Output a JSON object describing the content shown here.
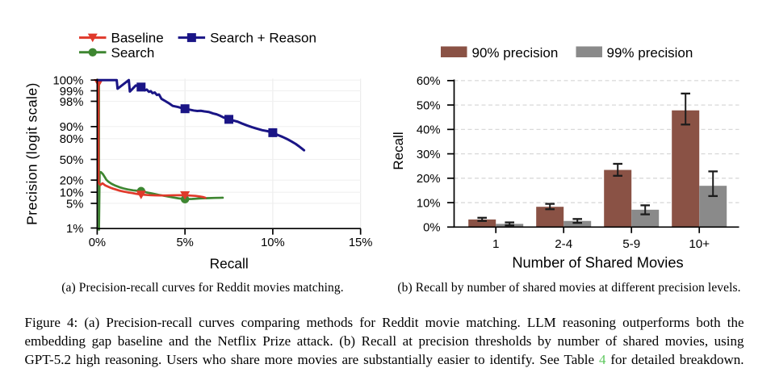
{
  "captions": {
    "sub_a": "(a) Precision-recall curves for Reddit movies matching.",
    "sub_b": "(b) Recall by number of shared movies at different precision levels.",
    "figure_line1": "Figure 4: (a) Precision-recall curves comparing methods for Reddit movie matching. LLM reasoning outperforms both the",
    "figure_line2": "embedding gap baseline and the Netflix Prize attack. (b) Recall at precision thresholds by number of shared movies, using",
    "figure_line3_pre": "GPT-5.2 high reasoning. Users who share more movies are substantially easier to identify. See Table ",
    "figure_line3_link": "4",
    "figure_line3_post": " for detailed breakdown.",
    "link_color": "#5fc85f"
  },
  "chart_data": [
    {
      "id": "pr_curves",
      "type": "line",
      "xlabel": "Recall",
      "ylabel": "Precision (logit scale)",
      "x_scale": "linear",
      "y_scale": "logit",
      "xlim": [
        0,
        15
      ],
      "x_ticks": [
        {
          "value": 0,
          "label": "0%"
        },
        {
          "value": 5,
          "label": "5%"
        },
        {
          "value": 10,
          "label": "10%"
        },
        {
          "value": 15,
          "label": "15%"
        }
      ],
      "y_ticks": [
        {
          "value": 1,
          "label": "1%"
        },
        {
          "value": 5,
          "label": "5%"
        },
        {
          "value": 10,
          "label": "10%"
        },
        {
          "value": 20,
          "label": "20%"
        },
        {
          "value": 50,
          "label": "50%"
        },
        {
          "value": 80,
          "label": "80%"
        },
        {
          "value": 90,
          "label": "90%"
        },
        {
          "value": 98,
          "label": "98%"
        },
        {
          "value": 99,
          "label": "99%"
        },
        {
          "value": 100,
          "label": "100%"
        }
      ],
      "series": [
        {
          "name": "Search",
          "color": "#3e8631",
          "marker": "circle",
          "points": [
            [
              0.1,
              100
            ],
            [
              0.1,
              0.9
            ],
            [
              0.14,
              30
            ],
            [
              0.21,
              30
            ],
            [
              0.32,
              27.3
            ],
            [
              0.44,
              23.1
            ],
            [
              0.52,
              20.4
            ],
            [
              0.64,
              18.3
            ],
            [
              0.81,
              16.4
            ],
            [
              1.04,
              14.7
            ],
            [
              1.28,
              13.4
            ],
            [
              1.51,
              12.5
            ],
            [
              1.74,
              11.8
            ],
            [
              2.05,
              11.2
            ],
            [
              2.5,
              10.7
            ],
            [
              2.8,
              9.9
            ],
            [
              3.1,
              9.3
            ],
            [
              3.5,
              8.5
            ],
            [
              3.9,
              7.9
            ],
            [
              4.3,
              7.3
            ],
            [
              4.6,
              6.9
            ],
            [
              5.0,
              6.5
            ],
            [
              5.4,
              6.6
            ],
            [
              5.9,
              6.85
            ],
            [
              6.3,
              6.95
            ],
            [
              6.7,
              7.05
            ],
            [
              7.0,
              7.1
            ],
            [
              7.15,
              7.15
            ]
          ],
          "marker_points": [
            [
              2.5,
              10.7
            ],
            [
              5.0,
              6.5
            ]
          ]
        },
        {
          "name": "Baseline",
          "color": "#e0392b",
          "marker": "triangle-down",
          "points": [
            [
              0.074,
              100
            ],
            [
              0.074,
              17.3
            ],
            [
              0.18,
              15.3
            ],
            [
              0.3,
              16.8
            ],
            [
              0.45,
              15.0
            ],
            [
              0.63,
              13.8
            ],
            [
              0.75,
              13.1
            ],
            [
              0.9,
              12.4
            ],
            [
              1.05,
              11.8
            ],
            [
              1.27,
              11.0
            ],
            [
              1.5,
              10.4
            ],
            [
              1.75,
              9.9
            ],
            [
              2.0,
              9.5
            ],
            [
              2.2,
              9.1
            ],
            [
              2.5,
              8.7
            ],
            [
              2.75,
              8.5
            ],
            [
              3.0,
              8.35
            ],
            [
              3.3,
              8.25
            ],
            [
              3.6,
              8.2
            ],
            [
              3.9,
              8.2
            ],
            [
              4.3,
              8.3
            ],
            [
              4.7,
              8.35
            ],
            [
              5.0,
              8.3
            ],
            [
              5.3,
              8.15
            ],
            [
              5.6,
              8.0
            ],
            [
              5.85,
              7.7
            ],
            [
              6.05,
              7.4
            ],
            [
              6.16,
              7.1
            ]
          ],
          "marker_points": [
            [
              0.08,
              99.4
            ],
            [
              2.5,
              8.6
            ],
            [
              5.0,
              8.3
            ]
          ]
        },
        {
          "name": "Search + Reason",
          "color": "#1a1586",
          "marker": "square",
          "points": [
            [
              0.05,
              100
            ],
            [
              1.11,
              100
            ],
            [
              1.16,
              99.13
            ],
            [
              1.8,
              99.85
            ],
            [
              1.86,
              98.95
            ],
            [
              2.2,
              99.3
            ],
            [
              2.5,
              99.22
            ],
            [
              2.62,
              99.18
            ],
            [
              2.72,
              99.03
            ],
            [
              2.82,
              99.08
            ],
            [
              2.95,
              98.93
            ],
            [
              3.05,
              98.98
            ],
            [
              3.15,
              98.83
            ],
            [
              3.28,
              98.88
            ],
            [
              3.4,
              98.68
            ],
            [
              3.52,
              98.73
            ],
            [
              3.66,
              98.3
            ],
            [
              3.9,
              98.0
            ],
            [
              4.1,
              97.7
            ],
            [
              4.3,
              97.3
            ],
            [
              4.6,
              97.1
            ],
            [
              4.8,
              96.9
            ],
            [
              5.0,
              96.75
            ],
            [
              5.2,
              96.6
            ],
            [
              5.5,
              96.35
            ],
            [
              5.7,
              96.25
            ],
            [
              5.9,
              96.3
            ],
            [
              6.1,
              96.15
            ],
            [
              6.35,
              96.0
            ],
            [
              6.6,
              95.6
            ],
            [
              6.8,
              95.35
            ],
            [
              7.0,
              94.9
            ],
            [
              7.2,
              94.3
            ],
            [
              7.5,
              93.6
            ],
            [
              7.7,
              93.2
            ],
            [
              8.0,
              92.6
            ],
            [
              8.25,
              91.7
            ],
            [
              8.55,
              90.6
            ],
            [
              8.8,
              89.7
            ],
            [
              9.0,
              89.0
            ],
            [
              9.2,
              88.3
            ],
            [
              9.4,
              87.6
            ],
            [
              9.7,
              86.9
            ],
            [
              10.0,
              85.7
            ],
            [
              10.3,
              83.6
            ],
            [
              10.55,
              81.9
            ],
            [
              10.8,
              79.8
            ],
            [
              11.05,
              77.1
            ],
            [
              11.3,
              73.9
            ],
            [
              11.5,
              70.5
            ],
            [
              11.65,
              67.5
            ],
            [
              11.78,
              64.8
            ]
          ],
          "marker_points": [
            [
              2.5,
              99.22
            ],
            [
              5.0,
              96.75
            ],
            [
              7.5,
              93.6
            ],
            [
              10.0,
              85.7
            ]
          ]
        }
      ]
    },
    {
      "id": "recall_by_shared_movies",
      "type": "bar",
      "xlabel": "Number of Shared Movies",
      "ylabel": "Recall",
      "categories": [
        "1",
        "2-4",
        "5-9",
        "10+"
      ],
      "ylim": [
        0,
        60
      ],
      "y_ticks": [
        {
          "value": 0,
          "label": "0%"
        },
        {
          "value": 10,
          "label": "10%"
        },
        {
          "value": 20,
          "label": "20%"
        },
        {
          "value": 30,
          "label": "30%"
        },
        {
          "value": 40,
          "label": "40%"
        },
        {
          "value": 50,
          "label": "50%"
        },
        {
          "value": 60,
          "label": "60%"
        }
      ],
      "series": [
        {
          "name": "90% precision",
          "color": "#8a5245",
          "values": [
            3.1,
            8.3,
            23.4,
            47.8
          ],
          "err_low": [
            0.6,
            1.0,
            2.4,
            5.8
          ],
          "err_high": [
            0.7,
            1.2,
            2.5,
            6.9
          ]
        },
        {
          "name": "99% precision",
          "color": "#8a8a8a",
          "values": [
            1.3,
            2.5,
            7.1,
            16.9
          ],
          "err_low": [
            0.6,
            0.8,
            1.9,
            4.2
          ],
          "err_high": [
            0.6,
            0.8,
            1.8,
            5.9
          ]
        }
      ]
    }
  ]
}
